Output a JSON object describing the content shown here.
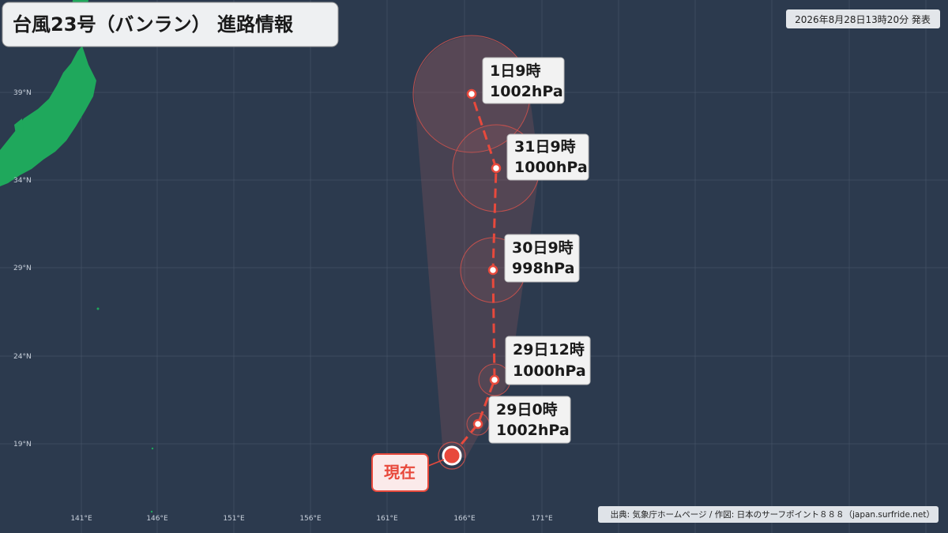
{
  "header": {
    "title": "台風23号（バンラン） 進路情報",
    "issued": "2026年8月28日13時20分 発表"
  },
  "lat_labels": [
    "39°N",
    "34°N",
    "29°N",
    "24°N",
    "19°N"
  ],
  "lon_labels": [
    "141°E",
    "146°E",
    "151°E",
    "156°E",
    "161°E",
    "166°E",
    "171°E"
  ],
  "forecast": [
    {
      "time": "1日9時",
      "pressure": "1002hPa"
    },
    {
      "time": "31日9時",
      "pressure": "1000hPa"
    },
    {
      "time": "30日9時",
      "pressure": "998hPa"
    },
    {
      "time": "29日12時",
      "pressure": "1000hPa"
    },
    {
      "time": "29日0時",
      "pressure": "1002hPa"
    }
  ],
  "current": "現在",
  "credit": "出典: 気象庁ホームページ / 作図: 日本のサーフポイント８８８（japan.surfride.net）"
}
